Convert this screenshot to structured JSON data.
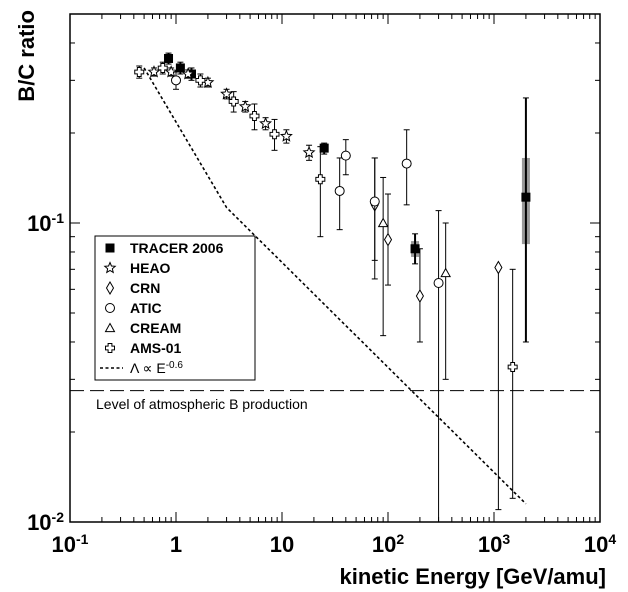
{
  "chart_data": {
    "type": "scatter",
    "title": "",
    "xlabel": "kinetic Energy [GeV/amu]",
    "ylabel": "B/C ratio",
    "xscale": "log",
    "yscale": "log",
    "xlim": [
      0.1,
      10000
    ],
    "ylim": [
      0.01,
      0.5
    ],
    "x_ticks": [
      {
        "value": 0.1,
        "base": "10",
        "exp": "-1"
      },
      {
        "value": 1,
        "base": "1",
        "exp": ""
      },
      {
        "value": 10,
        "base": "10",
        "exp": ""
      },
      {
        "value": 100,
        "base": "10",
        "exp": "2"
      },
      {
        "value": 1000,
        "base": "10",
        "exp": "3"
      },
      {
        "value": 10000,
        "base": "10",
        "exp": "4"
      }
    ],
    "y_ticks": [
      {
        "value": 0.01,
        "base": "10",
        "exp": "-2"
      },
      {
        "value": 0.1,
        "base": "10",
        "exp": "-1"
      }
    ],
    "legend_position": "lower-left",
    "series": [
      {
        "name": "TRACER 2006",
        "marker": "filled-square",
        "points": [
          {
            "x": 0.85,
            "y": 0.355,
            "lo": 0.34,
            "hi": 0.37
          },
          {
            "x": 1.1,
            "y": 0.33,
            "lo": 0.315,
            "hi": 0.345
          },
          {
            "x": 1.4,
            "y": 0.315,
            "lo": 0.3,
            "hi": 0.33
          },
          {
            "x": 25,
            "y": 0.178,
            "lo": 0.17,
            "hi": 0.185
          },
          {
            "x": 180,
            "y": 0.082,
            "lo": 0.073,
            "hi": 0.092,
            "blo": 0.077,
            "bhi": 0.087
          },
          {
            "x": 2000,
            "y": 0.122,
            "lo": 0.04,
            "hi": 0.262,
            "blo": 0.085,
            "bhi": 0.165
          }
        ]
      },
      {
        "name": "HEAO",
        "marker": "star",
        "points": [
          {
            "x": 0.62,
            "y": 0.32,
            "lo": 0.31,
            "hi": 0.33
          },
          {
            "x": 0.9,
            "y": 0.32,
            "lo": 0.31,
            "hi": 0.33
          },
          {
            "x": 1.3,
            "y": 0.315,
            "lo": 0.305,
            "hi": 0.325
          },
          {
            "x": 2.0,
            "y": 0.295,
            "lo": 0.285,
            "hi": 0.305
          },
          {
            "x": 3.0,
            "y": 0.27,
            "lo": 0.26,
            "hi": 0.28
          },
          {
            "x": 4.5,
            "y": 0.245,
            "lo": 0.235,
            "hi": 0.255
          },
          {
            "x": 7.0,
            "y": 0.215,
            "lo": 0.205,
            "hi": 0.225
          },
          {
            "x": 11.0,
            "y": 0.195,
            "lo": 0.185,
            "hi": 0.205
          },
          {
            "x": 18.0,
            "y": 0.172,
            "lo": 0.162,
            "hi": 0.182
          }
        ]
      },
      {
        "name": "CRN",
        "marker": "diamond",
        "points": [
          {
            "x": 75,
            "y": 0.115,
            "lo": 0.075,
            "hi": 0.165
          },
          {
            "x": 100,
            "y": 0.088,
            "lo": 0.062,
            "hi": 0.125
          },
          {
            "x": 200,
            "y": 0.057,
            "lo": 0.04,
            "hi": 0.082
          },
          {
            "x": 1100,
            "y": 0.071,
            "lo": 0.011,
            "hi": 0.071
          }
        ]
      },
      {
        "name": "ATIC",
        "marker": "circle",
        "points": [
          {
            "x": 1.0,
            "y": 0.3,
            "lo": 0.28,
            "hi": 0.32
          },
          {
            "x": 35,
            "y": 0.128,
            "lo": 0.095,
            "hi": 0.165
          },
          {
            "x": 40,
            "y": 0.168,
            "lo": 0.145,
            "hi": 0.19
          },
          {
            "x": 75,
            "y": 0.118,
            "lo": 0.065,
            "hi": 0.165
          },
          {
            "x": 150,
            "y": 0.158,
            "lo": 0.115,
            "hi": 0.205
          },
          {
            "x": 300,
            "y": 0.063,
            "lo": 0.01,
            "hi": 0.11
          }
        ]
      },
      {
        "name": "CREAM",
        "marker": "triangle",
        "points": [
          {
            "x": 90,
            "y": 0.1,
            "lo": 0.042,
            "hi": 0.142
          },
          {
            "x": 350,
            "y": 0.068,
            "lo": 0.03,
            "hi": 0.1
          }
        ]
      },
      {
        "name": "AMS-01",
        "marker": "cross",
        "points": [
          {
            "x": 0.45,
            "y": 0.32,
            "lo": 0.305,
            "hi": 0.335
          },
          {
            "x": 0.75,
            "y": 0.33,
            "lo": 0.315,
            "hi": 0.345
          },
          {
            "x": 1.7,
            "y": 0.3,
            "lo": 0.285,
            "hi": 0.315
          },
          {
            "x": 3.5,
            "y": 0.255,
            "lo": 0.235,
            "hi": 0.275
          },
          {
            "x": 5.5,
            "y": 0.228,
            "lo": 0.205,
            "hi": 0.25
          },
          {
            "x": 8.5,
            "y": 0.198,
            "lo": 0.175,
            "hi": 0.222
          },
          {
            "x": 23,
            "y": 0.14,
            "lo": 0.09,
            "hi": 0.18
          },
          {
            "x": 1500,
            "y": 0.033,
            "lo": 0.012,
            "hi": 0.07
          }
        ]
      }
    ],
    "power_law": {
      "label_html": "Λ ∝ E⁻⁰·⁶",
      "label_prefix": "Λ ∝ E",
      "label_exp": "-0.6",
      "x": [
        0.5,
        2000
      ],
      "y0": 0.33,
      "x0": 0.5,
      "index": -0.6,
      "x_break": 3,
      "y_end": 0.0115
    },
    "atmospheric_level": {
      "y": 0.0275,
      "label": "Level of atmospheric B production"
    }
  }
}
